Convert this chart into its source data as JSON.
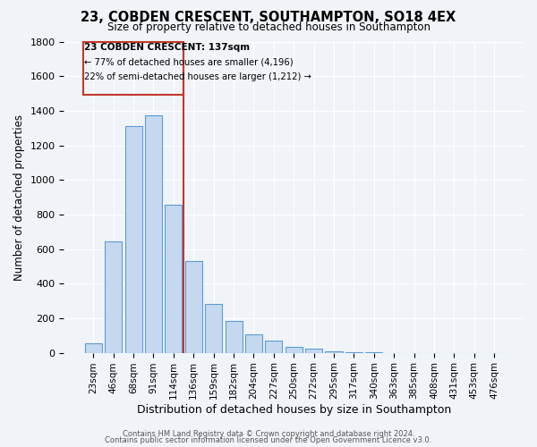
{
  "title": "23, COBDEN CRESCENT, SOUTHAMPTON, SO18 4EX",
  "subtitle": "Size of property relative to detached houses in Southampton",
  "xlabel": "Distribution of detached houses by size in Southampton",
  "ylabel": "Number of detached properties",
  "bar_labels": [
    "23sqm",
    "46sqm",
    "68sqm",
    "91sqm",
    "114sqm",
    "136sqm",
    "159sqm",
    "182sqm",
    "204sqm",
    "227sqm",
    "250sqm",
    "272sqm",
    "295sqm",
    "317sqm",
    "340sqm",
    "363sqm",
    "385sqm",
    "408sqm",
    "431sqm",
    "453sqm",
    "476sqm"
  ],
  "bar_values": [
    55,
    645,
    1310,
    1375,
    855,
    530,
    280,
    185,
    105,
    68,
    32,
    23,
    10,
    2,
    1,
    0,
    0,
    0,
    0,
    0,
    0
  ],
  "bar_color": "#c5d8f0",
  "bar_edge_color": "#5b9bd5",
  "vline_color": "#c0392b",
  "annotation_title": "23 COBDEN CRESCENT: 137sqm",
  "annotation_line1": "← 77% of detached houses are smaller (4,196)",
  "annotation_line2": "22% of semi-detached houses are larger (1,212) →",
  "box_edge_color": "#c0392b",
  "ylim": [
    0,
    1800
  ],
  "yticks": [
    0,
    200,
    400,
    600,
    800,
    1000,
    1200,
    1400,
    1600,
    1800
  ],
  "footer1": "Contains HM Land Registry data © Crown copyright and database right 2024.",
  "footer2": "Contains public sector information licensed under the Open Government Licence v3.0.",
  "bg_color": "#f0f4f9"
}
